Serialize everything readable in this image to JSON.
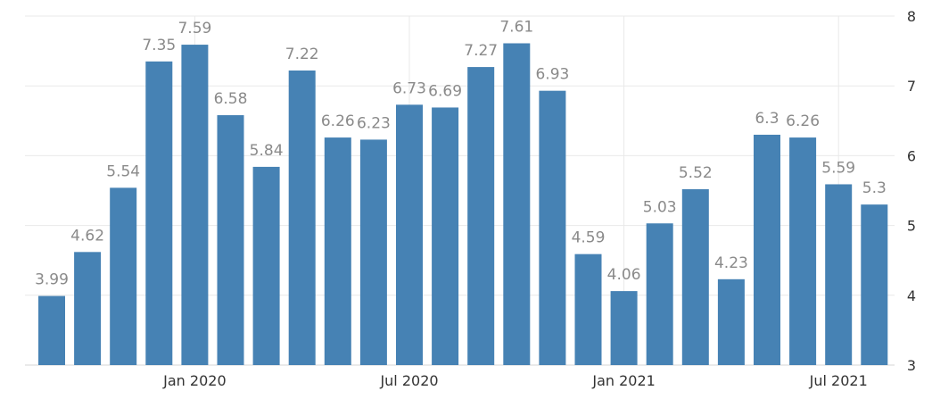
{
  "chart_data": {
    "type": "bar",
    "categories": [
      "2019-09",
      "2019-10",
      "2019-11",
      "2019-12",
      "2020-01",
      "2020-02",
      "2020-03",
      "2020-04",
      "2020-05",
      "2020-06",
      "2020-07",
      "2020-08",
      "2020-09",
      "2020-10",
      "2020-11",
      "2020-12",
      "2021-01",
      "2021-02",
      "2021-03",
      "2021-04",
      "2021-05",
      "2021-06",
      "2021-07",
      "2021-08"
    ],
    "values": [
      3.99,
      4.62,
      5.54,
      7.35,
      7.59,
      6.58,
      5.84,
      7.22,
      6.26,
      6.23,
      6.73,
      6.69,
      7.27,
      7.61,
      6.93,
      4.59,
      4.06,
      5.03,
      5.52,
      4.23,
      6.3,
      6.26,
      5.59,
      5.3
    ],
    "data_labels": [
      "3.99",
      "4.62",
      "5.54",
      "7.35",
      "7.59",
      "6.58",
      "5.84",
      "7.22",
      "6.26",
      "6.23",
      "6.73",
      "6.69",
      "7.27",
      "7.61",
      "6.93",
      "4.59",
      "4.06",
      "5.03",
      "5.52",
      "4.23",
      "6.3",
      "6.26",
      "5.59",
      "5.3"
    ],
    "x_tick_labels": [
      {
        "label": "Jan 2020",
        "category": "2020-01"
      },
      {
        "label": "Jul 2020",
        "category": "2020-07"
      },
      {
        "label": "Jan 2021",
        "category": "2021-01"
      },
      {
        "label": "Jul 2021",
        "category": "2021-07"
      }
    ],
    "y_ticks": [
      3,
      4,
      5,
      6,
      7,
      8
    ],
    "y_tick_labels": [
      "3",
      "4",
      "5",
      "6",
      "7",
      "8"
    ],
    "ylim": [
      3,
      8
    ],
    "y_axis_position": "right",
    "grid": true,
    "bar_color": "#4682b4",
    "label_color": "#8a8a8a",
    "title": "",
    "xlabel": "",
    "ylabel": ""
  }
}
